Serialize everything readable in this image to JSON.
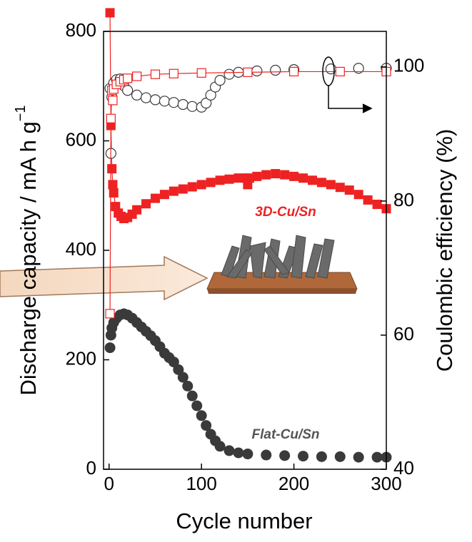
{
  "chart_data": {
    "type": "scatter",
    "x_label": "Cycle number",
    "y_label": "Discharge capacity / mA h g",
    "y_label_superscript": "−1",
    "y2_label": "Coulombic efficiency (%)",
    "annotations": [
      "3D-Cu/Sn",
      "Flat-Cu/Sn"
    ],
    "xlim": [
      -6,
      300
    ],
    "xticks": [
      0,
      100,
      200,
      300
    ],
    "ylim": [
      0,
      800
    ],
    "yticks": [
      0,
      200,
      400,
      600,
      800
    ],
    "y2lim": [
      40,
      105.3
    ],
    "y2ticks": [
      40,
      60,
      80,
      100
    ],
    "series": [
      {
        "color": "#3a3a3a",
        "marker": "circle",
        "filled": true,
        "x": [
          1,
          2,
          3,
          5,
          8,
          12,
          16,
          20,
          25,
          30,
          35,
          40,
          45,
          50,
          55,
          60,
          65,
          70,
          75,
          80,
          85,
          90,
          95,
          100,
          105,
          110,
          115,
          120,
          130,
          140,
          150,
          170,
          190,
          210,
          230,
          250,
          270,
          290,
          300
        ],
        "values": [
          222,
          245,
          258,
          268,
          276,
          282,
          284,
          282,
          276,
          268,
          260,
          252,
          244,
          235,
          224,
          212,
          204,
          196,
          182,
          168,
          152,
          134,
          116,
          98,
          80,
          64,
          52,
          42,
          34,
          30,
          28,
          26,
          25,
          24,
          23,
          23,
          22,
          22,
          22
        ]
      },
      {
        "color": "#ee2222",
        "marker": "square",
        "filled": true,
        "line": true,
        "x": [
          1,
          2,
          3,
          4,
          5,
          7,
          10,
          13,
          16,
          20,
          25,
          30,
          40,
          50,
          60,
          70,
          80,
          90,
          100,
          110,
          120,
          130,
          140,
          148,
          150,
          152,
          160,
          170,
          180,
          190,
          200,
          210,
          220,
          230,
          240,
          250,
          260,
          270,
          280,
          290,
          300
        ],
        "values": [
          834,
          628,
          549,
          520,
          505,
          480,
          468,
          462,
          458,
          460,
          466,
          474,
          485,
          495,
          502,
          508,
          512,
          516,
          520,
          524,
          528,
          530,
          532,
          532,
          520,
          532,
          535,
          538,
          540,
          538,
          535,
          532,
          528,
          524,
          520,
          515,
          510,
          502,
          492,
          484,
          476
        ]
      },
      {
        "color": "#3a3a3a",
        "marker": "circle",
        "filled": false,
        "axis": "y2",
        "x": [
          1,
          2,
          3,
          5,
          8,
          12,
          16,
          20,
          30,
          40,
          50,
          60,
          70,
          80,
          90,
          100,
          105,
          110,
          115,
          120,
          130,
          140,
          160,
          180,
          200,
          240,
          270,
          300
        ],
        "values": [
          96.8,
          87.1,
          95.5,
          97.6,
          98.1,
          98.2,
          97.2,
          96.5,
          95.8,
          95.4,
          95.1,
          94.9,
          94.7,
          94.4,
          94.1,
          94.0,
          94.6,
          95.8,
          97.0,
          98.0,
          98.9,
          99.2,
          99.4,
          99.5,
          99.6,
          99.7,
          99.8,
          99.8
        ]
      },
      {
        "color": "#ee2222",
        "marker": "square",
        "filled": false,
        "axis": "y2",
        "line": true,
        "x": [
          1,
          2,
          3,
          4,
          5,
          8,
          12,
          16,
          20,
          30,
          50,
          70,
          100,
          150,
          200,
          250,
          300
        ],
        "values": [
          63.2,
          92.3,
          96.5,
          95.0,
          96.7,
          97.4,
          97.8,
          98.1,
          98.3,
          98.6,
          98.9,
          99.0,
          99.1,
          99.2,
          99.3,
          99.3,
          99.3
        ]
      }
    ]
  }
}
